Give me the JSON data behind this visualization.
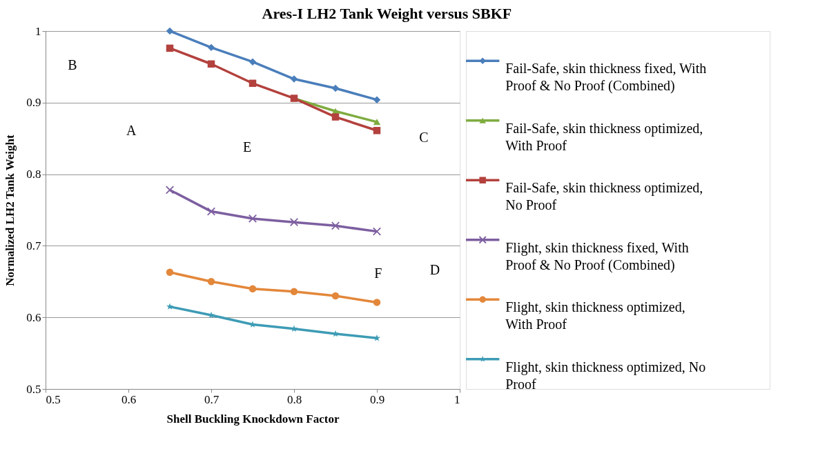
{
  "chart_data": {
    "type": "line",
    "title": "Ares-I LH2 Tank Weight versus SBKF",
    "xlabel": "Shell Buckling Knockdown Factor",
    "ylabel": "Normalized LH2 Tank Weight",
    "x": [
      0.65,
      0.7,
      0.75,
      0.8,
      0.85,
      0.9
    ],
    "series": [
      {
        "name": "Fail-Safe, skin thickness fixed, With Proof & No Proof (Combined)",
        "color": "#4a7ebb",
        "marker": "diamond",
        "values": [
          1.0,
          0.977,
          0.957,
          0.933,
          0.92,
          0.904
        ]
      },
      {
        "name": "Fail-Safe, skin thickness optimized, With Proof",
        "color": "#7eac3f",
        "marker": "triangle",
        "values": [
          null,
          null,
          null,
          0.906,
          0.888,
          0.873
        ]
      },
      {
        "name": "Fail-Safe, skin thickness optimized, No Proof",
        "color": "#b3413d",
        "marker": "square",
        "values": [
          0.976,
          0.954,
          0.927,
          0.906,
          0.88,
          0.861
        ]
      },
      {
        "name": "Flight, skin thickness fixed, With Proof & No Proof (Combined)",
        "color": "#7d5fa0",
        "marker": "cross",
        "values": [
          0.778,
          0.748,
          0.738,
          0.733,
          0.728,
          0.72
        ]
      },
      {
        "name": "Flight, skin thickness optimized, With Proof",
        "color": "#e3873a",
        "marker": "circle",
        "values": [
          0.663,
          0.65,
          0.64,
          0.636,
          0.63,
          0.621
        ]
      },
      {
        "name": "Flight, skin thickness optimized, No Proof",
        "color": "#3d9bb5",
        "marker": "star",
        "values": [
          0.615,
          0.603,
          0.59,
          0.584,
          0.577,
          0.571
        ]
      }
    ],
    "xlim": [
      0.5,
      1
    ],
    "xticks": [
      0.5,
      0.6,
      0.7,
      0.8,
      0.9,
      1
    ],
    "ylim": [
      0.5,
      1
    ],
    "yticks": [
      0.5,
      0.6,
      0.7,
      0.8,
      0.9,
      1
    ],
    "grid": "y",
    "legend": "right",
    "line_style": "solid",
    "annotations": [
      "A",
      "B",
      "C",
      "D",
      "E",
      "F"
    ]
  }
}
